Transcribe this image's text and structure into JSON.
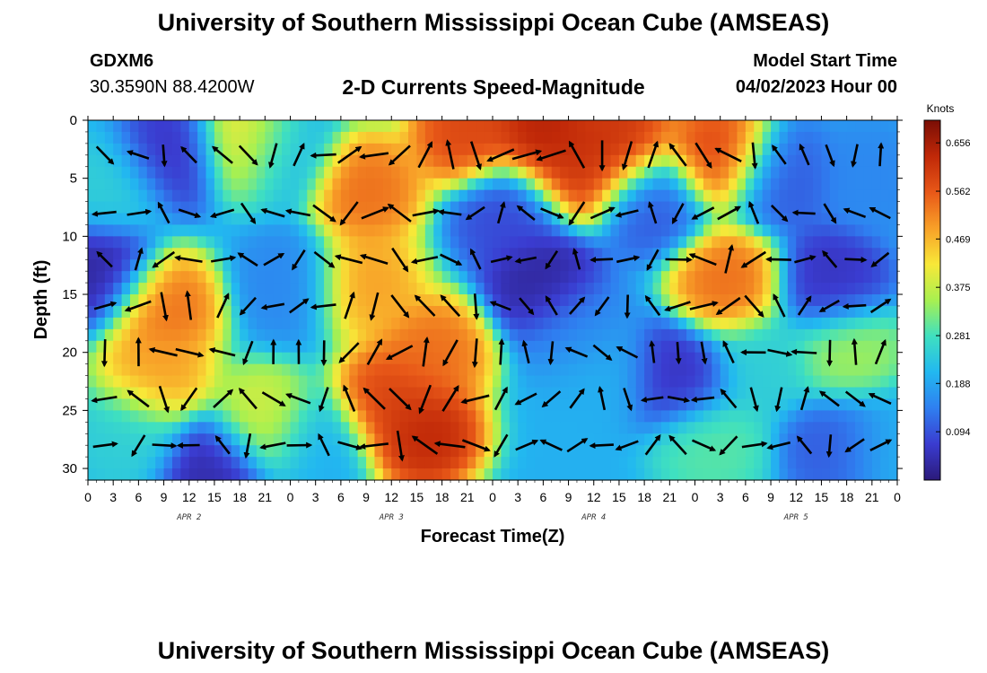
{
  "header": {
    "title": "University of Southern Mississippi Ocean Cube (AMSEAS)",
    "station": "GDXM6",
    "coords": "30.3590N  88.4200W",
    "subtitle": "2-D Currents Speed-Magnitude",
    "model_label": "Model Start Time",
    "model_time": "04/02/2023 Hour 00"
  },
  "footer": {
    "title": "University of Southern Mississippi Ocean Cube (AMSEAS)"
  },
  "chart_data": {
    "type": "heatmap",
    "xlabel": "Forecast Time(Z)",
    "ylabel": "Depth (ft)",
    "x_ticks": [
      "0",
      "3",
      "6",
      "9",
      "12",
      "15",
      "18",
      "21",
      "0",
      "3",
      "6",
      "9",
      "12",
      "15",
      "18",
      "21",
      "0",
      "3",
      "6",
      "9",
      "12",
      "15",
      "18",
      "21",
      "0",
      "3",
      "6",
      "9",
      "12",
      "15",
      "18",
      "21",
      "0"
    ],
    "x_range_hours": [
      0,
      96
    ],
    "date_labels": [
      {
        "label": "APR 2",
        "hour": 12
      },
      {
        "label": "APR 3",
        "hour": 36
      },
      {
        "label": "APR 4",
        "hour": 60
      },
      {
        "label": "APR 5",
        "hour": 84
      }
    ],
    "y_ticks": [
      0,
      5,
      10,
      15,
      20,
      25,
      30
    ],
    "ylim": [
      0,
      31
    ],
    "y_inverted": true,
    "colorbar": {
      "title": "Knots",
      "ticks": [
        "0.656",
        "0.562",
        "0.469",
        "0.375",
        "0.281",
        "0.188",
        "0.094"
      ],
      "range": [
        0,
        0.7
      ],
      "colors": [
        "#2b1a7a",
        "#3a3cd0",
        "#2f7ff0",
        "#22b8f0",
        "#3fe0c0",
        "#a8f050",
        "#f8e838",
        "#f8a028",
        "#e85818",
        "#c02808",
        "#7a0e05"
      ]
    },
    "speed_blobs": [
      {
        "hour": 3,
        "depth": 6,
        "speed": 0.25
      },
      {
        "hour": 10,
        "depth": 3,
        "speed": 0.05
      },
      {
        "hour": 2,
        "depth": 13,
        "speed": 0.02
      },
      {
        "hour": 9,
        "depth": 16,
        "speed": 0.55
      },
      {
        "hour": 8,
        "depth": 22,
        "speed": 0.5
      },
      {
        "hour": 5,
        "depth": 27,
        "speed": 0.25
      },
      {
        "hour": 15,
        "depth": 30,
        "speed": 0.03
      },
      {
        "hour": 19,
        "depth": 2,
        "speed": 0.45
      },
      {
        "hour": 23,
        "depth": 3,
        "speed": 0.2
      },
      {
        "hour": 24,
        "depth": 14,
        "speed": 0.15
      },
      {
        "hour": 21,
        "depth": 26,
        "speed": 0.4
      },
      {
        "hour": 27,
        "depth": 28,
        "speed": 0.2
      },
      {
        "hour": 33,
        "depth": 6,
        "speed": 0.55
      },
      {
        "hour": 33,
        "depth": 14,
        "speed": 0.5
      },
      {
        "hour": 36,
        "depth": 24,
        "speed": 0.6
      },
      {
        "hour": 40,
        "depth": 27,
        "speed": 0.65
      },
      {
        "hour": 41,
        "depth": 20,
        "speed": 0.55
      },
      {
        "hour": 45,
        "depth": 1,
        "speed": 0.6
      },
      {
        "hour": 54,
        "depth": 1,
        "speed": 0.66
      },
      {
        "hour": 58,
        "depth": 4,
        "speed": 0.62
      },
      {
        "hour": 63,
        "depth": 2,
        "speed": 0.63
      },
      {
        "hour": 50,
        "depth": 8,
        "speed": 0.08
      },
      {
        "hour": 54,
        "depth": 14,
        "speed": 0.02
      },
      {
        "hour": 58,
        "depth": 18,
        "speed": 0.15
      },
      {
        "hour": 61,
        "depth": 22,
        "speed": 0.2
      },
      {
        "hour": 67,
        "depth": 7,
        "speed": 0.1
      },
      {
        "hour": 70,
        "depth": 22,
        "speed": 0.05
      },
      {
        "hour": 75,
        "depth": 3,
        "speed": 0.6
      },
      {
        "hour": 76,
        "depth": 14,
        "speed": 0.55
      },
      {
        "hour": 74,
        "depth": 28,
        "speed": 0.3
      },
      {
        "hour": 80,
        "depth": 21,
        "speed": 0.25
      },
      {
        "hour": 82,
        "depth": 5,
        "speed": 0.1
      },
      {
        "hour": 88,
        "depth": 14,
        "speed": 0.05
      },
      {
        "hour": 90,
        "depth": 20,
        "speed": 0.35
      },
      {
        "hour": 93,
        "depth": 5,
        "speed": 0.15
      },
      {
        "hour": 89,
        "depth": 28,
        "speed": 0.1
      },
      {
        "hour": 95,
        "depth": 28,
        "speed": 0.2
      }
    ],
    "vector_hours": [
      2,
      6,
      9,
      12,
      16,
      19,
      22,
      25,
      28,
      31,
      34,
      37,
      40,
      43,
      46,
      49,
      52,
      55,
      58,
      61,
      64,
      67,
      70,
      73,
      76,
      79,
      82,
      85,
      88,
      91,
      94
    ],
    "vector_depths": [
      3,
      8,
      12,
      16,
      20,
      24,
      28
    ],
    "background_speed": 0.2
  }
}
